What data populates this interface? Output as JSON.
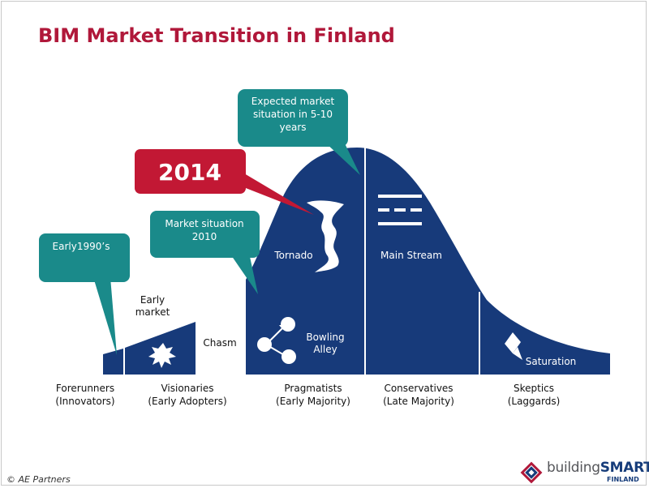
{
  "title": "BIM Market Transition in Finland",
  "callouts": {
    "expected_line1": "Expected market",
    "expected_line2": "situation in 5-10",
    "expected_line3": "years",
    "year_2014": "2014",
    "market2010_line1": "Market situation",
    "market2010_line2": "2010",
    "early1990": "Early1990’s"
  },
  "phases": {
    "early_market_line1": "Early",
    "early_market_line2": "market",
    "chasm": "Chasm",
    "tornado": "Tornado",
    "main_stream": "Main Stream",
    "bowling_line1": "Bowling",
    "bowling_line2": "Alley",
    "saturation": "Saturation"
  },
  "segments": [
    {
      "line1": "Forerunners",
      "line2": "(Innovators)"
    },
    {
      "line1": "Visionaries",
      "line2": "(Early Adopters)"
    },
    {
      "line1": "Pragmatists",
      "line2": "(Early Majority)"
    },
    {
      "line1": "Conservatives",
      "line2": "(Late Majority)"
    },
    {
      "line1": "Skeptics",
      "line2": "(Laggards)"
    }
  ],
  "footer": {
    "copyright": "© AE Partners",
    "logo_main_a": "building",
    "logo_main_b": "SMART",
    "logo_sub": "FINLAND"
  },
  "colors": {
    "title": "#b0183a",
    "curve_fill": "#173a7a",
    "teal_callout": "#1a8a8a",
    "red_callout": "#c21834",
    "divider": "#ffffff"
  },
  "icons": [
    "starburst-icon",
    "network-nodes-icon",
    "diamond-arrow-icon",
    "lightning-tornado-icon",
    "main-stream-lines-icon"
  ]
}
